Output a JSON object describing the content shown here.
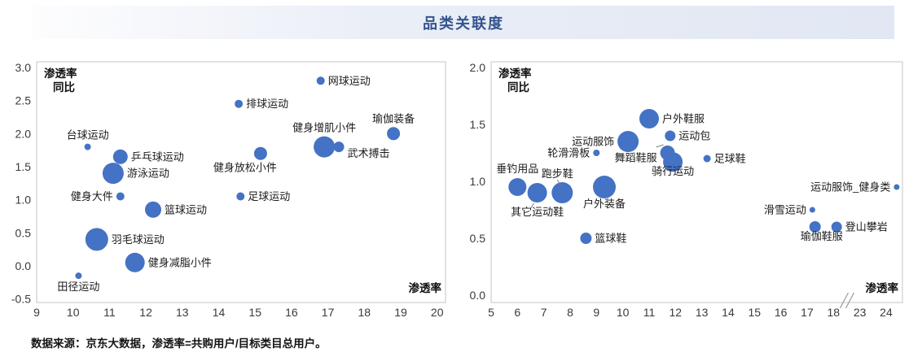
{
  "page": {
    "title": "品类关联度",
    "footnote": "数据来源：京东大数据，渗透率=共购用户/目标类目总用户。"
  },
  "colors": {
    "title_text": "#35548F",
    "bubble": "#4472C4",
    "plot_border": "#c6c6c6",
    "leader_line": "#7f7f7f",
    "break_mark": "#9a9a9a"
  },
  "chart_data": [
    {
      "type": "scatter",
      "id": "left-bubble-chart",
      "xlabel": "渗透率",
      "ylabel_lines": [
        "渗透率",
        "同比"
      ],
      "xlim": [
        9,
        20
      ],
      "ylim": [
        -0.5,
        3.0
      ],
      "grid": false,
      "legend": "none",
      "x_ticks": [
        "9",
        "10",
        "11",
        "12",
        "13",
        "14",
        "15",
        "16",
        "17",
        "18",
        "19",
        "20"
      ],
      "y_ticks": [
        "3.0",
        "2.5",
        "2.0",
        "1.5",
        "1.0",
        "0.5",
        "0.0",
        "-0.5"
      ],
      "points": [
        {
          "name": "台球运动",
          "x": 10.4,
          "y": 1.8,
          "r": 4,
          "side": "above"
        },
        {
          "name": "乒乓球运动",
          "x": 11.3,
          "y": 1.65,
          "r": 9,
          "side": "right"
        },
        {
          "name": "游泳运动",
          "x": 11.1,
          "y": 1.4,
          "r": 13,
          "side": "right"
        },
        {
          "name": "健身大件",
          "x": 11.3,
          "y": 1.05,
          "r": 5,
          "side": "left"
        },
        {
          "name": "篮球运动",
          "x": 12.2,
          "y": 0.85,
          "r": 10,
          "side": "right"
        },
        {
          "name": "羽毛球运动",
          "x": 10.65,
          "y": 0.4,
          "r": 14,
          "side": "right"
        },
        {
          "name": "健身减脂小件",
          "x": 11.7,
          "y": 0.05,
          "r": 12,
          "side": "right"
        },
        {
          "name": "田径运动",
          "x": 10.15,
          "y": -0.15,
          "r": 4,
          "side": "below"
        },
        {
          "name": "网球运动",
          "x": 16.8,
          "y": 2.8,
          "r": 5,
          "side": "right"
        },
        {
          "name": "排球运动",
          "x": 14.55,
          "y": 2.45,
          "r": 5,
          "side": "right"
        },
        {
          "name": "健身放松小件",
          "x": 15.15,
          "y": 1.7,
          "r": 8,
          "side": "below",
          "dx": -19
        },
        {
          "name": "足球运动",
          "x": 14.6,
          "y": 1.05,
          "r": 5,
          "side": "right"
        },
        {
          "name": "健身增肌小件",
          "x": 16.9,
          "y": 1.8,
          "r": 13,
          "side": "above"
        },
        {
          "name": "武术搏击",
          "x": 17.3,
          "y": 1.8,
          "r": 6.5,
          "side": "right",
          "dy": 8
        },
        {
          "name": "瑜伽装备",
          "x": 18.8,
          "y": 2.0,
          "r": 8,
          "side": "above"
        }
      ]
    },
    {
      "type": "scatter",
      "id": "right-bubble-chart",
      "xlabel": "渗透率",
      "ylabel_lines": [
        "渗透率",
        "同比"
      ],
      "xlim": [
        5,
        24
      ],
      "ylim": [
        0.0,
        2.0
      ],
      "grid": false,
      "legend": "none",
      "x_break": {
        "between": [
          18,
          23
        ]
      },
      "x_ticks": [
        "5",
        "6",
        "7",
        "8",
        "9",
        "10",
        "11",
        "12",
        "13",
        "14",
        "15",
        "16",
        "17",
        "18",
        "23",
        "24"
      ],
      "y_ticks": [
        "2.0",
        "1.5",
        "1.0",
        "0.5",
        "0.0"
      ],
      "points": [
        {
          "name": "垂钓用品",
          "x": 6.0,
          "y": 0.95,
          "r": 11,
          "side": "above",
          "dy": -1
        },
        {
          "name": "其它运动鞋",
          "x": 6.75,
          "y": 0.9,
          "r": 12,
          "side": "below",
          "dy": 2,
          "leader": [
            -4,
            13,
            -8,
            19
          ]
        },
        {
          "name": "跑步鞋",
          "x": 7.7,
          "y": 0.9,
          "r": 13,
          "side": "above",
          "dx": -6,
          "leader": [
            -6,
            -16,
            -2,
            -9
          ]
        },
        {
          "name": "户外装备",
          "x": 9.3,
          "y": 0.95,
          "r": 14,
          "side": "below",
          "dy": -3
        },
        {
          "name": "篮球鞋",
          "x": 8.6,
          "y": 0.5,
          "r": 7,
          "side": "right"
        },
        {
          "name": "轮滑滑板",
          "x": 9.0,
          "y": 1.25,
          "r": 4,
          "side": "left"
        },
        {
          "name": "运动服饰",
          "x": 10.2,
          "y": 1.35,
          "r": 13,
          "side": "left"
        },
        {
          "name": "户外鞋服",
          "x": 11.0,
          "y": 1.55,
          "r": 12,
          "side": "right"
        },
        {
          "name": "运动包",
          "x": 11.8,
          "y": 1.4,
          "r": 6.5,
          "side": "right"
        },
        {
          "name": "舞蹈鞋服",
          "x": 11.7,
          "y": 1.25,
          "r": 9,
          "side": "left",
          "dy": 6,
          "leader": [
            -14,
            -7,
            -5,
            -10
          ]
        },
        {
          "name": "骑行运动",
          "x": 11.9,
          "y": 1.17,
          "r": 12,
          "side": "below",
          "dy": -10
        },
        {
          "name": "足球鞋",
          "x": 13.2,
          "y": 1.2,
          "r": 4.5,
          "side": "right"
        },
        {
          "name": "运动服饰_健身类",
          "x": 24.4,
          "y": 0.95,
          "r": 3.5,
          "side": "left"
        },
        {
          "name": "滑雪运动",
          "x": 17.2,
          "y": 0.75,
          "r": 3.5,
          "side": "left"
        },
        {
          "name": "瑜伽鞋服",
          "x": 17.3,
          "y": 0.6,
          "r": 7,
          "side": "below",
          "dx": 8,
          "dy": -5
        },
        {
          "name": "登山攀岩",
          "x": 18.6,
          "y": 0.6,
          "r": 6.5,
          "side": "right"
        }
      ]
    }
  ]
}
